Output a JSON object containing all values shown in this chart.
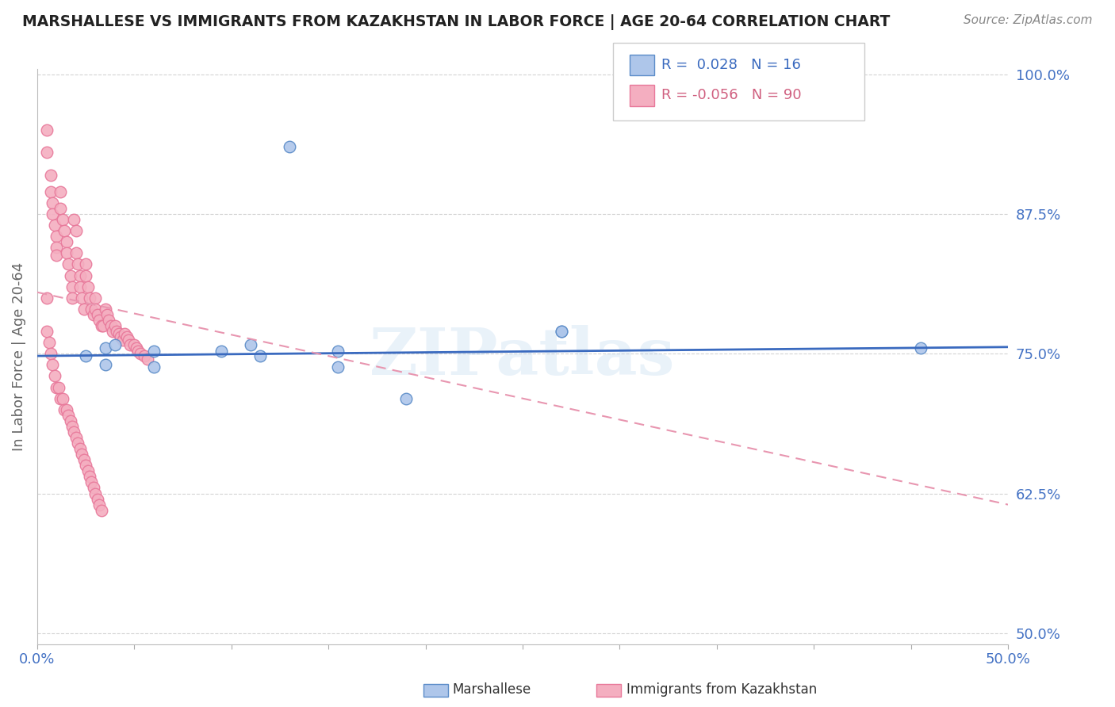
{
  "title": "MARSHALLESE VS IMMIGRANTS FROM KAZAKHSTAN IN LABOR FORCE | AGE 20-64 CORRELATION CHART",
  "source": "Source: ZipAtlas.com",
  "ylabel": "In Labor Force | Age 20-64",
  "xlim": [
    0.0,
    0.5
  ],
  "ylim": [
    0.49,
    1.005
  ],
  "xticks": [
    0.0,
    0.05,
    0.1,
    0.15,
    0.2,
    0.25,
    0.3,
    0.35,
    0.4,
    0.45,
    0.5
  ],
  "yticks": [
    0.5,
    0.625,
    0.75,
    0.875,
    1.0
  ],
  "ytick_labels": [
    "50.0%",
    "62.5%",
    "75.0%",
    "87.5%",
    "100.0%"
  ],
  "legend_r_blue": "0.028",
  "legend_n_blue": "16",
  "legend_r_pink": "-0.056",
  "legend_n_pink": "90",
  "blue_color": "#aec6ea",
  "pink_color": "#f4aec0",
  "blue_edge_color": "#5b8cc8",
  "pink_edge_color": "#e8789a",
  "blue_line_color": "#3a6abf",
  "pink_line_color": "#e896b0",
  "watermark": "ZIPatlas",
  "blue_scatter_x": [
    0.025,
    0.035,
    0.035,
    0.06,
    0.06,
    0.095,
    0.11,
    0.115,
    0.13,
    0.155,
    0.155,
    0.19,
    0.27,
    0.27,
    0.455,
    0.04
  ],
  "blue_scatter_y": [
    0.748,
    0.74,
    0.755,
    0.738,
    0.752,
    0.752,
    0.758,
    0.748,
    0.935,
    0.738,
    0.752,
    0.71,
    0.77,
    0.77,
    0.755,
    0.758
  ],
  "pink_scatter_x": [
    0.005,
    0.005,
    0.007,
    0.007,
    0.008,
    0.008,
    0.009,
    0.01,
    0.01,
    0.01,
    0.012,
    0.012,
    0.013,
    0.014,
    0.015,
    0.015,
    0.016,
    0.017,
    0.018,
    0.018,
    0.019,
    0.02,
    0.02,
    0.021,
    0.022,
    0.022,
    0.023,
    0.024,
    0.025,
    0.025,
    0.026,
    0.027,
    0.028,
    0.029,
    0.03,
    0.03,
    0.031,
    0.032,
    0.033,
    0.034,
    0.035,
    0.036,
    0.037,
    0.038,
    0.039,
    0.04,
    0.041,
    0.042,
    0.043,
    0.044,
    0.045,
    0.046,
    0.047,
    0.048,
    0.05,
    0.051,
    0.052,
    0.053,
    0.055,
    0.057,
    0.005,
    0.005,
    0.006,
    0.007,
    0.008,
    0.009,
    0.01,
    0.011,
    0.012,
    0.013,
    0.014,
    0.015,
    0.016,
    0.017,
    0.018,
    0.019,
    0.02,
    0.021,
    0.022,
    0.023,
    0.024,
    0.025,
    0.026,
    0.027,
    0.028,
    0.029,
    0.03,
    0.031,
    0.032,
    0.033
  ],
  "pink_scatter_y": [
    0.95,
    0.93,
    0.91,
    0.895,
    0.885,
    0.875,
    0.865,
    0.855,
    0.845,
    0.838,
    0.895,
    0.88,
    0.87,
    0.86,
    0.85,
    0.84,
    0.83,
    0.82,
    0.81,
    0.8,
    0.87,
    0.86,
    0.84,
    0.83,
    0.82,
    0.81,
    0.8,
    0.79,
    0.83,
    0.82,
    0.81,
    0.8,
    0.79,
    0.785,
    0.8,
    0.79,
    0.785,
    0.78,
    0.775,
    0.775,
    0.79,
    0.785,
    0.78,
    0.775,
    0.77,
    0.775,
    0.77,
    0.768,
    0.765,
    0.762,
    0.768,
    0.765,
    0.762,
    0.758,
    0.758,
    0.755,
    0.752,
    0.75,
    0.748,
    0.745,
    0.8,
    0.77,
    0.76,
    0.75,
    0.74,
    0.73,
    0.72,
    0.72,
    0.71,
    0.71,
    0.7,
    0.7,
    0.695,
    0.69,
    0.685,
    0.68,
    0.675,
    0.67,
    0.665,
    0.66,
    0.655,
    0.65,
    0.645,
    0.64,
    0.635,
    0.63,
    0.625,
    0.62,
    0.615,
    0.61
  ]
}
